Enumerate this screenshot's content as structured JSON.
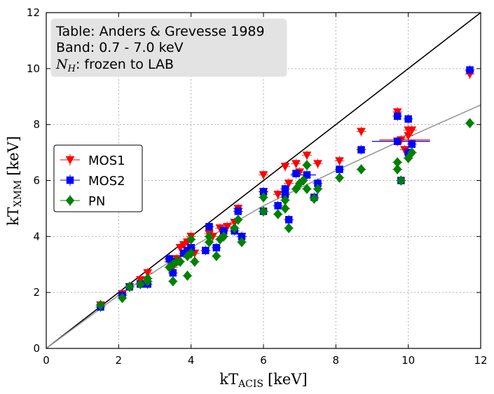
{
  "chart_data": {
    "type": "scatter",
    "xlabel": "kT",
    "xlabel_sub": "ACIS",
    "xlabel_unit": "[keV]",
    "ylabel": "kT",
    "ylabel_sub": "XMM",
    "ylabel_unit": "[keV]",
    "xlim": [
      0,
      12
    ],
    "ylim": [
      0,
      12
    ],
    "xticks": [
      "0",
      "2",
      "4",
      "6",
      "8",
      "10",
      "12"
    ],
    "yticks": [
      "0",
      "2",
      "4",
      "6",
      "8",
      "10",
      "12"
    ],
    "grid": true,
    "annotation": {
      "line1": "Table: Anders & Grevesse 1989",
      "line2": "Band: 0.7 - 7.0 keV",
      "line3_symbol": "N",
      "line3_sub": "H",
      "line3_rest": ": frozen to LAB"
    },
    "reference_lines": [
      {
        "name": "one-to-one",
        "color": "#000000",
        "points": [
          [
            0,
            0
          ],
          [
            12,
            12
          ]
        ]
      },
      {
        "name": "fit",
        "color": "#999999",
        "points": [
          [
            0,
            0
          ],
          [
            2,
            1.9
          ],
          [
            4,
            3.6
          ],
          [
            6,
            5.1
          ],
          [
            8,
            6.35
          ],
          [
            10,
            7.55
          ],
          [
            12,
            8.7
          ]
        ]
      }
    ],
    "legend": {
      "position": "center-left",
      "entries": [
        {
          "label": "MOS1",
          "color": "#ff0000",
          "marker": "triangle-down"
        },
        {
          "label": "MOS2",
          "color": "#0000ff",
          "marker": "square"
        },
        {
          "label": "PN",
          "color": "#008000",
          "marker": "diamond"
        }
      ]
    },
    "series": [
      {
        "name": "MOS1",
        "color": "#ff0000",
        "marker": "triangle-down",
        "points": [
          [
            1.5,
            1.55
          ],
          [
            2.1,
            1.95
          ],
          [
            2.3,
            2.2
          ],
          [
            2.6,
            2.45
          ],
          [
            2.8,
            2.7
          ],
          [
            3.4,
            3.1
          ],
          [
            3.5,
            2.9
          ],
          [
            3.6,
            3.2
          ],
          [
            3.7,
            3.6
          ],
          [
            3.8,
            3.7
          ],
          [
            3.9,
            3.8
          ],
          [
            4.0,
            4.0
          ],
          [
            4.1,
            3.4
          ],
          [
            4.5,
            4.1
          ],
          [
            4.6,
            4.0
          ],
          [
            4.8,
            4.3
          ],
          [
            5.0,
            4.35
          ],
          [
            5.2,
            4.5
          ],
          [
            5.3,
            5.0
          ],
          [
            5.4,
            4.0
          ],
          [
            6.0,
            6.2
          ],
          [
            6.0,
            5.6
          ],
          [
            6.4,
            5.5
          ],
          [
            6.6,
            6.5
          ],
          [
            6.7,
            5.9
          ],
          [
            6.9,
            6.6
          ],
          [
            7.0,
            6.3
          ],
          [
            7.2,
            6.9
          ],
          [
            7.5,
            6.6
          ],
          [
            8.1,
            6.7
          ],
          [
            8.7,
            7.75
          ],
          [
            9.7,
            8.45
          ],
          [
            9.7,
            7.4
          ],
          [
            9.8,
            7.45
          ],
          [
            9.9,
            7.1
          ],
          [
            10.0,
            7.8
          ],
          [
            10.0,
            7.6
          ],
          [
            10.1,
            7.8
          ],
          [
            11.7,
            9.8
          ]
        ],
        "xerr": [
          [
            9.9,
            0.7
          ]
        ]
      },
      {
        "name": "MOS2",
        "color": "#0000ff",
        "marker": "square",
        "points": [
          [
            1.5,
            1.48
          ],
          [
            2.1,
            1.9
          ],
          [
            2.3,
            2.2
          ],
          [
            2.6,
            2.3
          ],
          [
            2.8,
            2.3
          ],
          [
            3.4,
            3.2
          ],
          [
            3.5,
            2.7
          ],
          [
            3.6,
            3.1
          ],
          [
            3.8,
            3.4
          ],
          [
            3.9,
            3.5
          ],
          [
            4.0,
            3.6
          ],
          [
            4.4,
            3.5
          ],
          [
            4.5,
            4.35
          ],
          [
            4.7,
            3.6
          ],
          [
            4.9,
            4.2
          ],
          [
            5.2,
            4.2
          ],
          [
            5.3,
            4.9
          ],
          [
            5.4,
            4.0
          ],
          [
            6.0,
            4.9
          ],
          [
            6.0,
            5.6
          ],
          [
            6.4,
            5.1
          ],
          [
            6.6,
            5.7
          ],
          [
            6.6,
            5.5
          ],
          [
            6.7,
            4.6
          ],
          [
            6.9,
            6.25
          ],
          [
            7.2,
            6.2
          ],
          [
            7.4,
            5.4
          ],
          [
            7.5,
            5.9
          ],
          [
            8.1,
            6.4
          ],
          [
            8.7,
            7.1
          ],
          [
            9.7,
            7.4
          ],
          [
            9.7,
            8.3
          ],
          [
            9.8,
            6.0
          ],
          [
            10.0,
            8.2
          ],
          [
            10.0,
            7.0
          ],
          [
            10.1,
            7.3
          ],
          [
            11.7,
            9.95
          ]
        ],
        "xerr": [
          [
            9.8,
            0.8
          ],
          [
            7.1,
            0.35
          ]
        ]
      },
      {
        "name": "PN",
        "color": "#008000",
        "marker": "diamond",
        "points": [
          [
            1.5,
            1.55
          ],
          [
            2.1,
            1.8
          ],
          [
            2.3,
            2.2
          ],
          [
            2.6,
            2.3
          ],
          [
            2.8,
            2.5
          ],
          [
            2.8,
            2.4
          ],
          [
            3.4,
            2.9
          ],
          [
            3.5,
            2.4
          ],
          [
            3.5,
            3.0
          ],
          [
            3.6,
            3.1
          ],
          [
            3.7,
            3.1
          ],
          [
            3.9,
            2.6
          ],
          [
            3.9,
            3.3
          ],
          [
            4.0,
            3.9
          ],
          [
            4.0,
            3.4
          ],
          [
            4.1,
            3.1
          ],
          [
            4.5,
            4.0
          ],
          [
            4.5,
            3.8
          ],
          [
            4.7,
            3.3
          ],
          [
            4.8,
            3.9
          ],
          [
            4.9,
            4.0
          ],
          [
            5.2,
            4.3
          ],
          [
            5.3,
            4.6
          ],
          [
            5.4,
            3.8
          ],
          [
            6.0,
            5.4
          ],
          [
            6.0,
            4.9
          ],
          [
            6.4,
            4.8
          ],
          [
            6.6,
            5.3
          ],
          [
            6.6,
            5.0
          ],
          [
            6.7,
            4.3
          ],
          [
            6.9,
            5.7
          ],
          [
            7.0,
            5.9
          ],
          [
            7.1,
            6.0
          ],
          [
            7.2,
            6.55
          ],
          [
            7.2,
            5.7
          ],
          [
            7.4,
            5.35
          ],
          [
            7.5,
            5.7
          ],
          [
            8.1,
            6.1
          ],
          [
            8.7,
            6.4
          ],
          [
            9.7,
            6.65
          ],
          [
            9.7,
            6.4
          ],
          [
            9.8,
            6.0
          ],
          [
            10.0,
            6.8
          ],
          [
            10.1,
            7.0
          ],
          [
            11.7,
            8.05
          ]
        ],
        "xerr": []
      }
    ]
  }
}
